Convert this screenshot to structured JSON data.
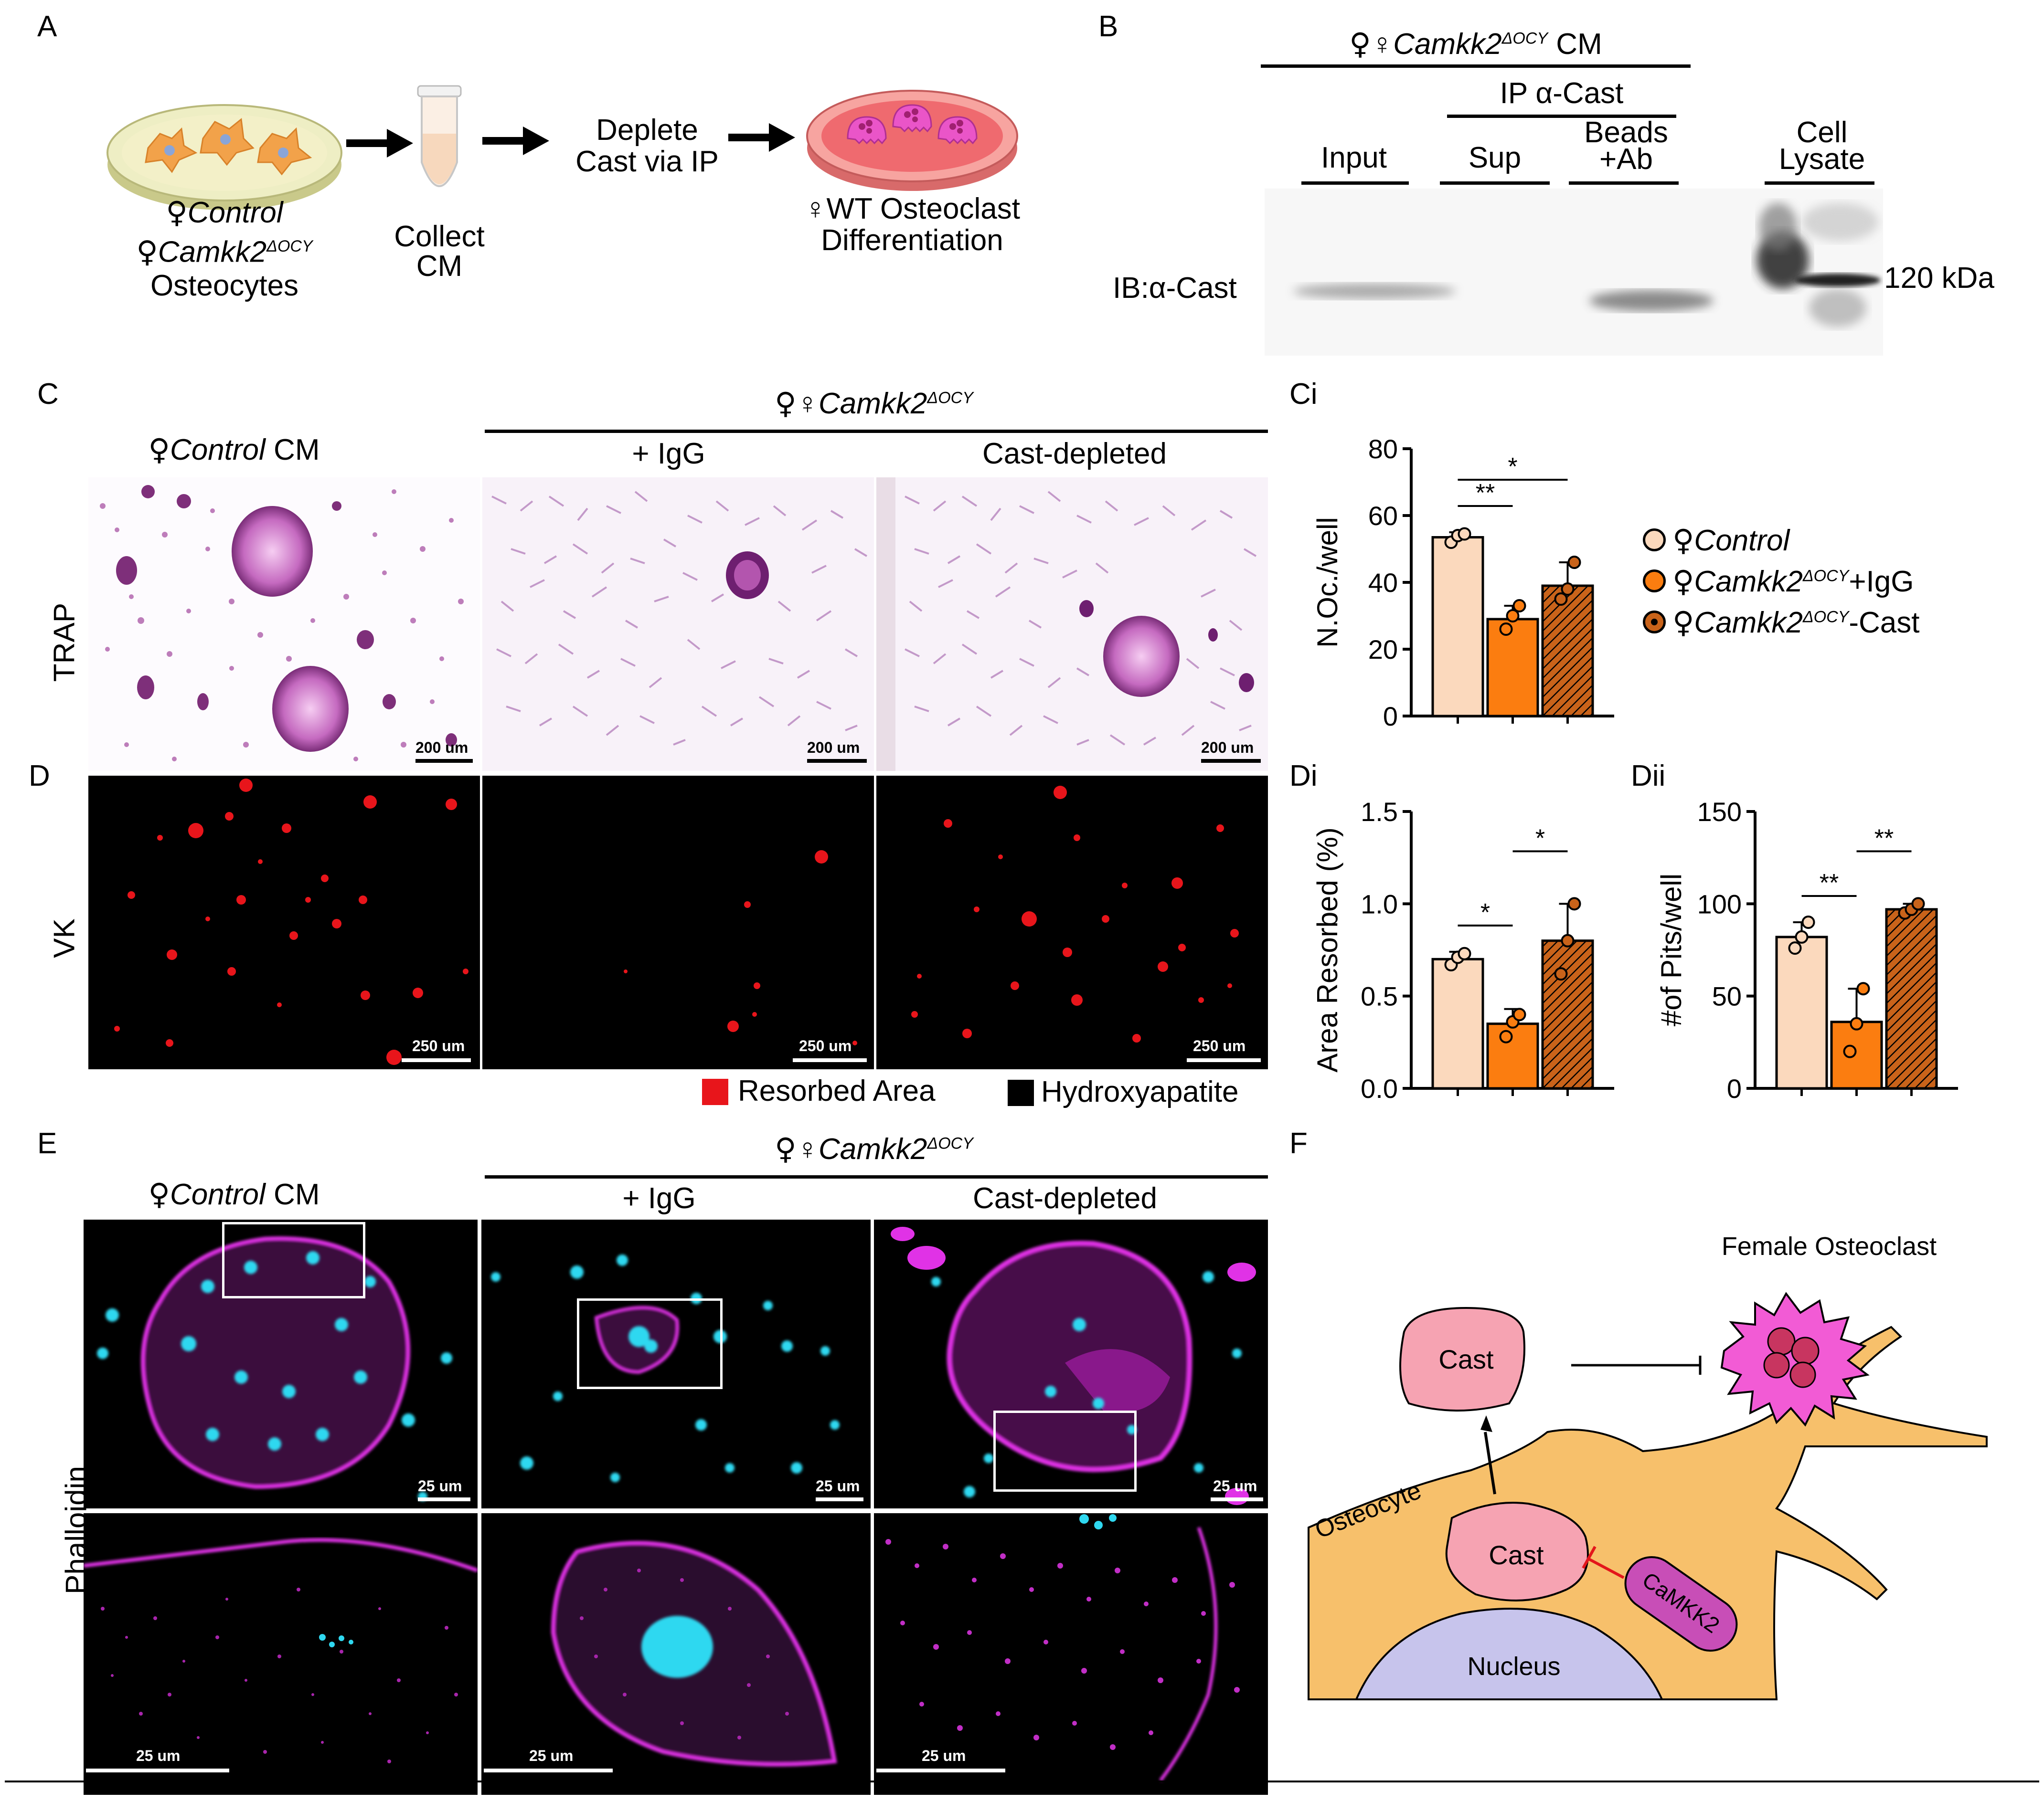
{
  "panels": {
    "A": "A",
    "B": "B",
    "C": "C",
    "Ci": "Ci",
    "D": "D",
    "Di": "Di",
    "Dii": "Dii",
    "E": "E",
    "F": "F"
  },
  "panelA": {
    "step1_line1": "♀Control",
    "step1_line2_a": "♀Camkk2",
    "step1_line2_sup": "ΔOCY",
    "step1_line3": "Osteocytes",
    "step2_line1": "Collect",
    "step2_line2": "CM",
    "step3_line1": "Deplete",
    "step3_line2": "Cast via IP",
    "step4_line1": "♀WT Osteoclast",
    "step4_line2": "Differentiation"
  },
  "panelB": {
    "header_a": "♀Camkk2",
    "header_sup": "ΔOCY",
    "header_b": " CM",
    "ip_header": "IP α-Cast",
    "lanes": [
      "Input",
      "Sup",
      "Beads",
      "+Ab",
      "Cell",
      "Lysate"
    ],
    "ib_label": "IB:α-Cast",
    "mw_label": "120 kDa"
  },
  "panelC": {
    "control_header": "♀Control CM",
    "camkk2_header_a": "♀Camkk2",
    "camkk2_header_sup": "ΔOCY",
    "igg": "+ IgG",
    "cast_depleted": "Cast-depleted",
    "row_label": "TRAP",
    "scale": "200 um"
  },
  "panelD": {
    "row_label": "VK",
    "scale": "250 um",
    "legend_resorbed": "Resorbed Area",
    "legend_hydroxy": "Hydroxyapatite"
  },
  "panelE": {
    "control_header": "♀Control CM",
    "camkk2_header_a": "♀Camkk2",
    "camkk2_header_sup": "ΔOCY",
    "igg": "+ IgG",
    "cast_depleted": "Cast-depleted",
    "row_label": "Phalloidin",
    "scale": "25 um"
  },
  "panelF": {
    "title": "Female Osteoclast",
    "cast_top": "Cast",
    "cast_inner": "Cast",
    "osteocyte": "Osteocyte",
    "camkk2": "CaMKK2",
    "nucleus": "Nucleus"
  },
  "legend": {
    "items": [
      {
        "prefix": "♀",
        "italic": "Control",
        "sup": "",
        "suffix": ""
      },
      {
        "prefix": "♀",
        "italic": "Camkk2",
        "sup": "ΔOCY",
        "suffix": "+IgG"
      },
      {
        "prefix": "♀",
        "italic": "Camkk2",
        "sup": "ΔOCY",
        "suffix": "-Cast"
      }
    ]
  },
  "colors": {
    "control": "#fbd9bd",
    "igg": "#fb7d10",
    "cast": "#c9631a",
    "magenta": "#e032e6",
    "cyan": "#2fd8f0",
    "red": "#e8151b"
  },
  "chart_data": [
    {
      "id": "Ci",
      "type": "bar",
      "ylabel": "N.Oc./well",
      "ylim": [
        0,
        80
      ],
      "yticks": [
        "0",
        "20",
        "40",
        "60",
        "80"
      ],
      "categories": [
        "♀Control",
        "♀Camkk2ΔOCY+IgG",
        "♀Camkk2ΔOCY-Cast"
      ],
      "values": [
        53.5,
        29,
        39
      ],
      "errors": [
        1.5,
        4,
        7
      ],
      "points": [
        [
          52,
          54,
          54.5
        ],
        [
          26,
          30,
          33
        ],
        [
          35,
          38,
          46
        ]
      ],
      "significance": [
        {
          "from": 0,
          "to": 1,
          "label": "**"
        },
        {
          "from": 0,
          "to": 2,
          "label": "*"
        }
      ]
    },
    {
      "id": "Di",
      "type": "bar",
      "ylabel": "Area Resorbed (%)",
      "ylim": [
        0,
        1.5
      ],
      "yticks": [
        "0.0",
        "0.5",
        "1.0",
        "1.5"
      ],
      "categories": [
        "♀Control",
        "♀Camkk2ΔOCY+IgG",
        "♀Camkk2ΔOCY-Cast"
      ],
      "values": [
        0.7,
        0.35,
        0.8
      ],
      "errors": [
        0.04,
        0.08,
        0.2
      ],
      "points": [
        [
          0.67,
          0.71,
          0.73
        ],
        [
          0.28,
          0.36,
          0.4
        ],
        [
          0.62,
          0.8,
          1.0
        ]
      ],
      "significance": [
        {
          "from": 0,
          "to": 1,
          "label": "*"
        },
        {
          "from": 1,
          "to": 2,
          "label": "*"
        }
      ]
    },
    {
      "id": "Dii",
      "type": "bar",
      "ylabel": "#of Pits/well",
      "ylim": [
        0,
        150
      ],
      "yticks": [
        "0",
        "50",
        "100",
        "150"
      ],
      "categories": [
        "♀Control",
        "♀Camkk2ΔOCY+IgG",
        "♀Camkk2ΔOCY-Cast"
      ],
      "values": [
        82,
        36,
        97
      ],
      "errors": [
        8,
        18,
        3
      ],
      "points": [
        [
          76,
          82,
          90
        ],
        [
          20,
          35,
          54
        ],
        [
          95,
          97,
          100
        ]
      ],
      "significance": [
        {
          "from": 0,
          "to": 1,
          "label": "**"
        },
        {
          "from": 1,
          "to": 2,
          "label": "**"
        }
      ]
    }
  ]
}
